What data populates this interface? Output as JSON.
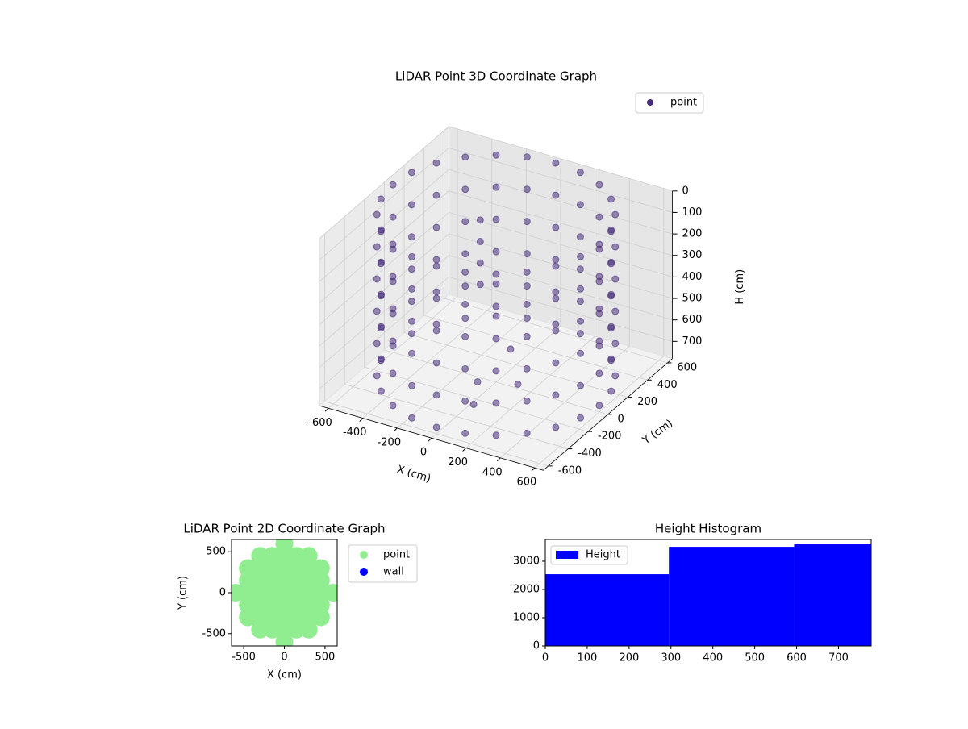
{
  "chart_data": [
    {
      "type": "scatter3d",
      "title": "LiDAR Point 3D Coordinate Graph",
      "xlabel": "X (cm)",
      "ylabel": "Y (cm)",
      "zlabel": "H (cm)",
      "xlim": [
        -650,
        650
      ],
      "ylim": [
        -650,
        650
      ],
      "zlim": [
        0,
        780
      ],
      "zinverted": true,
      "xticks": [
        -600,
        -400,
        -200,
        0,
        200,
        400,
        600
      ],
      "yticks": [
        -600,
        -400,
        -200,
        0,
        200,
        400,
        600
      ],
      "zticks": [
        0,
        100,
        200,
        300,
        400,
        500,
        600,
        700
      ],
      "grid": true,
      "legend": "upper right",
      "series": [
        {
          "name": "point",
          "color": "#472d7b",
          "x": [
            600,
            580,
            520,
            424,
            300,
            155,
            0,
            -155,
            -300,
            -424,
            -520,
            -580,
            -600,
            -580,
            -520,
            -424,
            -300,
            -155,
            0,
            155,
            300,
            424,
            520,
            580,
            600,
            580,
            520,
            424,
            300,
            155,
            0,
            -155,
            -300,
            -424,
            -520,
            -580,
            -600,
            -580,
            -520,
            -424,
            -300,
            -155,
            0,
            155,
            300,
            424,
            520,
            580,
            600,
            580,
            520,
            424,
            300,
            155,
            0,
            -155,
            -300,
            -424,
            -520,
            -580,
            -600,
            -580,
            -520,
            -424,
            -300,
            -155,
            0,
            155,
            300,
            424,
            520,
            580,
            600,
            580,
            520,
            424,
            300,
            155,
            0,
            -155,
            -300,
            -424,
            -520,
            -580,
            -600,
            -580,
            -520,
            -424,
            -300,
            -155,
            0,
            155,
            300,
            424,
            520,
            580,
            600,
            580,
            520,
            424,
            300,
            155,
            0,
            -155,
            -300,
            -424,
            -520,
            -580,
            -600,
            -580,
            -520,
            -424,
            -300,
            -155,
            0,
            155,
            300,
            424,
            520,
            580,
            600,
            580,
            520,
            424,
            300,
            155,
            0,
            -155,
            -300,
            -424,
            -520,
            -580,
            -600,
            -580,
            -520,
            -424,
            -300,
            -155,
            0,
            155,
            300,
            424,
            520,
            580,
            -150,
            -150,
            -150,
            -150,
            200,
            300,
            100,
            -50
          ],
          "y": [
            0,
            155,
            300,
            424,
            520,
            580,
            600,
            580,
            520,
            424,
            300,
            155,
            0,
            -155,
            -300,
            -424,
            -520,
            -580,
            -600,
            -580,
            -520,
            -424,
            -300,
            -155,
            0,
            155,
            300,
            424,
            520,
            580,
            600,
            580,
            520,
            424,
            300,
            155,
            0,
            -155,
            -300,
            -424,
            -520,
            -580,
            -600,
            -580,
            -520,
            -424,
            -300,
            -155,
            0,
            155,
            300,
            424,
            520,
            580,
            600,
            580,
            520,
            424,
            300,
            155,
            0,
            -155,
            -300,
            -424,
            -520,
            -580,
            -600,
            -580,
            -520,
            -424,
            -300,
            -155,
            0,
            155,
            300,
            424,
            520,
            580,
            600,
            580,
            520,
            424,
            300,
            155,
            0,
            -155,
            -300,
            -424,
            -520,
            -580,
            -600,
            -580,
            -520,
            -424,
            -300,
            -155,
            0,
            155,
            300,
            424,
            520,
            580,
            600,
            580,
            520,
            424,
            300,
            155,
            0,
            -155,
            -300,
            -424,
            -520,
            -580,
            -600,
            -580,
            -520,
            -424,
            -300,
            -155,
            0,
            155,
            300,
            424,
            520,
            580,
            600,
            580,
            520,
            424,
            300,
            155,
            0,
            -155,
            -300,
            -424,
            -520,
            -580,
            -600,
            -580,
            -520,
            -424,
            -300,
            -155,
            100,
            100,
            100,
            100,
            -200,
            -300,
            -400,
            -100
          ],
          "z": [
            0,
            0,
            0,
            0,
            0,
            0,
            0,
            0,
            0,
            0,
            0,
            0,
            0,
            0,
            0,
            0,
            0,
            0,
            0,
            0,
            0,
            0,
            0,
            0,
            150,
            150,
            150,
            150,
            150,
            150,
            150,
            150,
            150,
            150,
            150,
            150,
            150,
            150,
            150,
            150,
            150,
            150,
            150,
            150,
            150,
            150,
            150,
            150,
            300,
            300,
            300,
            300,
            300,
            300,
            300,
            300,
            300,
            300,
            300,
            300,
            300,
            300,
            300,
            300,
            300,
            300,
            300,
            300,
            300,
            300,
            300,
            300,
            450,
            450,
            450,
            450,
            450,
            450,
            450,
            450,
            450,
            450,
            450,
            450,
            450,
            450,
            450,
            450,
            450,
            450,
            450,
            450,
            450,
            450,
            450,
            450,
            600,
            600,
            600,
            600,
            600,
            600,
            600,
            600,
            600,
            600,
            600,
            600,
            600,
            600,
            600,
            600,
            600,
            600,
            600,
            600,
            600,
            600,
            600,
            600,
            750,
            750,
            750,
            750,
            750,
            750,
            750,
            750,
            750,
            750,
            750,
            750,
            750,
            750,
            750,
            750,
            750,
            750,
            750,
            750,
            750,
            750,
            750,
            750,
            100,
            200,
            300,
            400,
            500,
            600,
            700,
            750
          ]
        }
      ]
    },
    {
      "type": "scatter",
      "title": "LiDAR Point 2D Coordinate Graph",
      "xlabel": "X (cm)",
      "ylabel": "Y (cm)",
      "xlim": [
        -650,
        650
      ],
      "ylim": [
        -650,
        650
      ],
      "xticks": [
        -500,
        0,
        500
      ],
      "yticks": [
        -500,
        0,
        500
      ],
      "legend": "outside right",
      "series": [
        {
          "name": "point",
          "color": "#90ee90",
          "x": [
            -600,
            -450,
            -450,
            -450,
            -450,
            -450,
            -300,
            -300,
            -300,
            -300,
            -300,
            -300,
            -300,
            -150,
            -150,
            -150,
            -150,
            -150,
            -150,
            -150,
            0,
            0,
            0,
            0,
            0,
            0,
            0,
            0,
            0,
            150,
            150,
            150,
            150,
            150,
            150,
            150,
            300,
            300,
            300,
            300,
            300,
            300,
            300,
            450,
            450,
            450,
            450,
            450,
            600
          ],
          "y": [
            0,
            -300,
            -150,
            0,
            150,
            300,
            -450,
            -300,
            -150,
            0,
            150,
            300,
            450,
            -450,
            -300,
            -150,
            0,
            150,
            300,
            450,
            -600,
            -450,
            -300,
            -150,
            0,
            150,
            300,
            450,
            600,
            -450,
            -300,
            -150,
            0,
            150,
            300,
            450,
            -450,
            -300,
            -150,
            0,
            150,
            300,
            450,
            -300,
            -150,
            0,
            150,
            300,
            0
          ]
        },
        {
          "name": "wall",
          "color": "#0000ff",
          "x": [],
          "y": []
        }
      ]
    },
    {
      "type": "histogram",
      "title": "Height Histogram",
      "legend": "upper left",
      "series": [
        {
          "name": "Height",
          "color": "#0000ff",
          "bins": [
            0,
            295,
            594,
            778
          ],
          "counts": [
            2540,
            3510,
            3600
          ]
        }
      ],
      "xlim": [
        0,
        778
      ],
      "ylim": [
        0,
        3770
      ],
      "xticks": [
        0,
        100,
        200,
        300,
        400,
        500,
        600,
        700
      ],
      "yticks": [
        0,
        1000,
        2000,
        3000
      ]
    }
  ]
}
